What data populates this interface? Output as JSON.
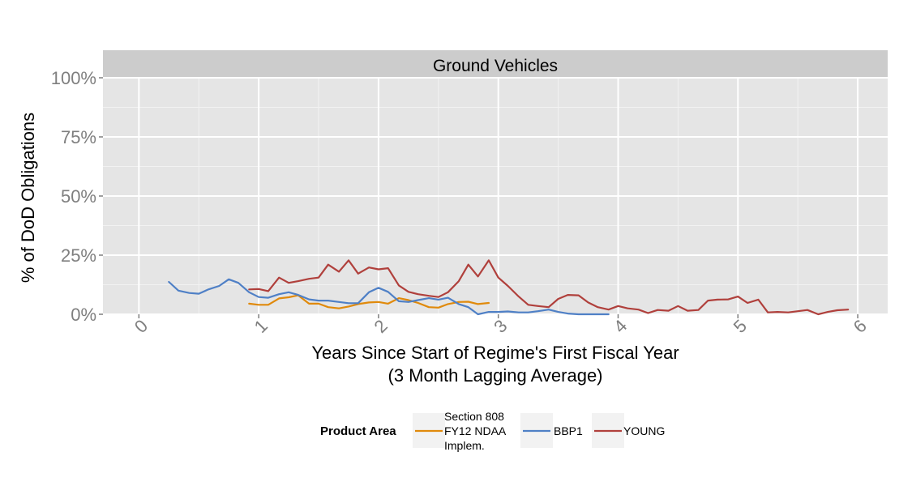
{
  "chart_data": {
    "type": "line",
    "facet_title": "Ground Vehicles",
    "xlabel_line1": "Years Since Start of Regime's First Fiscal Year",
    "xlabel_line2": "(3 Month Lagging Average)",
    "ylabel": "% of DoD Obligations",
    "xlim": [
      -0.3,
      6.25
    ],
    "ylim": [
      0,
      1.0
    ],
    "x_ticks": [
      "0",
      "1",
      "2",
      "3",
      "4",
      "5",
      "6"
    ],
    "y_ticks": [
      "0%",
      "25%",
      "50%",
      "75%",
      "100%"
    ],
    "grid": true,
    "legend": {
      "position": "bottom",
      "title": "Product Area",
      "labels": [
        "Section 808 FY12 NDAA Implem.",
        "BBP1",
        "YOUNG"
      ],
      "label_lines": [
        [
          "Section 808",
          "FY12 NDAA",
          "Implem."
        ],
        [
          "BBP1"
        ],
        [
          "YOUNG"
        ]
      ]
    },
    "series": [
      {
        "name": "Section 808 FY12 NDAA Implem.",
        "color": "#E08A0C",
        "x": [
          0.92,
          1.0,
          1.08,
          1.17,
          1.25,
          1.33,
          1.42,
          1.5,
          1.58,
          1.67,
          1.75,
          1.83,
          1.92,
          2.0,
          2.08,
          2.17,
          2.25,
          2.33,
          2.42,
          2.5,
          2.58,
          2.67,
          2.75,
          2.83,
          2.92
        ],
        "y": [
          0.045,
          0.04,
          0.04,
          0.067,
          0.072,
          0.08,
          0.045,
          0.045,
          0.03,
          0.025,
          0.033,
          0.043,
          0.05,
          0.052,
          0.045,
          0.068,
          0.06,
          0.048,
          0.03,
          0.028,
          0.043,
          0.052,
          0.053,
          0.043,
          0.048
        ]
      },
      {
        "name": "BBP1",
        "color": "#4F80C6",
        "x": [
          0.25,
          0.33,
          0.42,
          0.5,
          0.58,
          0.67,
          0.75,
          0.83,
          0.92,
          1.0,
          1.08,
          1.17,
          1.25,
          1.33,
          1.42,
          1.5,
          1.58,
          1.67,
          1.75,
          1.83,
          1.92,
          2.0,
          2.08,
          2.17,
          2.25,
          2.33,
          2.42,
          2.5,
          2.58,
          2.67,
          2.75,
          2.83,
          2.92,
          3.0,
          3.08,
          3.17,
          3.25,
          3.33,
          3.42,
          3.5,
          3.58,
          3.67,
          3.75,
          3.83,
          3.92
        ],
        "y": [
          0.137,
          0.1,
          0.09,
          0.087,
          0.105,
          0.12,
          0.148,
          0.133,
          0.093,
          0.073,
          0.07,
          0.085,
          0.093,
          0.082,
          0.063,
          0.058,
          0.058,
          0.052,
          0.047,
          0.047,
          0.093,
          0.112,
          0.095,
          0.055,
          0.052,
          0.06,
          0.068,
          0.062,
          0.07,
          0.043,
          0.03,
          0.0,
          0.01,
          0.01,
          0.012,
          0.008,
          0.008,
          0.013,
          0.02,
          0.01,
          0.003,
          0.0,
          0.0,
          0.0,
          0.0
        ]
      },
      {
        "name": "YOUNG",
        "color": "#B0403C",
        "x": [
          0.92,
          1.0,
          1.08,
          1.17,
          1.25,
          1.33,
          1.42,
          1.5,
          1.58,
          1.67,
          1.75,
          1.83,
          1.92,
          2.0,
          2.08,
          2.17,
          2.25,
          2.33,
          2.42,
          2.5,
          2.58,
          2.67,
          2.75,
          2.83,
          2.92,
          3.0,
          3.08,
          3.17,
          3.25,
          3.33,
          3.42,
          3.5,
          3.58,
          3.67,
          3.75,
          3.83,
          3.92,
          4.0,
          4.08,
          4.17,
          4.25,
          4.33,
          4.42,
          4.5,
          4.58,
          4.67,
          4.75,
          4.83,
          4.92,
          5.0,
          5.08,
          5.17,
          5.25,
          5.33,
          5.42,
          5.5,
          5.58,
          5.67,
          5.75,
          5.83,
          5.92
        ],
        "y": [
          0.105,
          0.107,
          0.098,
          0.155,
          0.133,
          0.14,
          0.15,
          0.155,
          0.21,
          0.18,
          0.228,
          0.172,
          0.198,
          0.19,
          0.195,
          0.122,
          0.095,
          0.085,
          0.078,
          0.073,
          0.093,
          0.14,
          0.21,
          0.16,
          0.228,
          0.155,
          0.12,
          0.075,
          0.04,
          0.035,
          0.03,
          0.065,
          0.082,
          0.08,
          0.05,
          0.03,
          0.02,
          0.035,
          0.025,
          0.02,
          0.005,
          0.018,
          0.015,
          0.035,
          0.015,
          0.018,
          0.058,
          0.062,
          0.063,
          0.075,
          0.048,
          0.062,
          0.008,
          0.01,
          0.008,
          0.013,
          0.018,
          0.0,
          0.01,
          0.017,
          0.02
        ]
      }
    ]
  }
}
